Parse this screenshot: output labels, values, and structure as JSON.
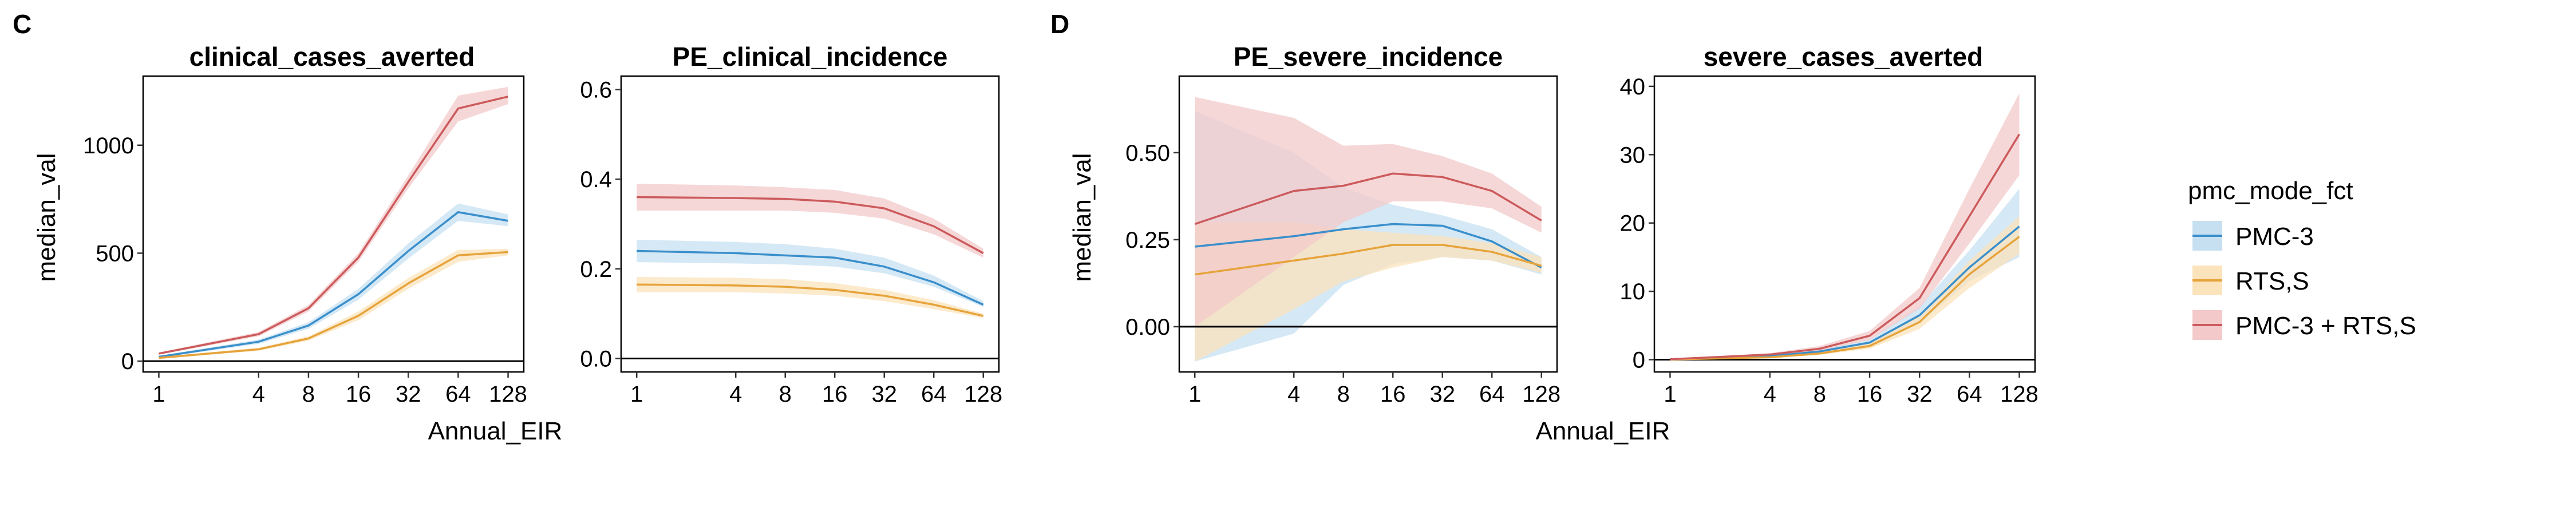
{
  "panel_labels": [
    "C",
    "D"
  ],
  "legend": {
    "title": "pmc_mode_fct",
    "items": [
      {
        "label": "PMC-3",
        "line_color": "#3A8FCB",
        "fill_color": "#C7E0F1"
      },
      {
        "label": "RTS,S",
        "line_color": "#E6A33A",
        "fill_color": "#FBE3BB"
      },
      {
        "label": "PMC-3 + RTS,S",
        "line_color": "#CC5A5C",
        "fill_color": "#F3C9CA"
      }
    ]
  },
  "axis_titles": {
    "x_left": "Annual_EIR",
    "x_right": "Annual_EIR",
    "y_left": "median_val",
    "y_right": "median_val"
  },
  "chart_data": [
    {
      "type": "area",
      "title": "clinical_cases_averted",
      "x": [
        1,
        4,
        8,
        16,
        32,
        64,
        128
      ],
      "x_scale": "log2",
      "x_ticks": [
        "1",
        "4",
        "8",
        "16",
        "32",
        "64",
        "128"
      ],
      "y_ticks": [
        0,
        500,
        1000
      ],
      "y_tick_labels": [
        "0",
        "500",
        "1000"
      ],
      "ylim": [
        -50,
        1320
      ],
      "hline": 0,
      "series": [
        {
          "name": "PMC-3",
          "values": [
            20,
            90,
            165,
            310,
            510,
            690,
            650
          ],
          "lower": [
            15,
            80,
            150,
            285,
            475,
            650,
            625
          ],
          "upper": [
            25,
            100,
            180,
            335,
            545,
            730,
            680
          ]
        },
        {
          "name": "RTS,S",
          "values": [
            15,
            55,
            105,
            210,
            360,
            490,
            505
          ],
          "lower": [
            10,
            48,
            95,
            190,
            335,
            460,
            490
          ],
          "upper": [
            20,
            62,
            115,
            230,
            385,
            515,
            520
          ]
        },
        {
          "name": "PMC-3 + RTS,S",
          "values": [
            35,
            125,
            245,
            480,
            830,
            1170,
            1225
          ],
          "lower": [
            30,
            115,
            230,
            460,
            800,
            1110,
            1190
          ],
          "upper": [
            40,
            135,
            260,
            500,
            860,
            1230,
            1270
          ]
        }
      ]
    },
    {
      "type": "area",
      "title": "PE_clinical_incidence",
      "x": [
        1,
        4,
        8,
        16,
        32,
        64,
        128
      ],
      "x_scale": "log2",
      "x_ticks": [
        "1",
        "4",
        "8",
        "16",
        "32",
        "64",
        "128"
      ],
      "y_ticks": [
        0.0,
        0.2,
        0.4,
        0.6
      ],
      "y_tick_labels": [
        "0.0",
        "0.2",
        "0.4",
        "0.6"
      ],
      "ylim": [
        -0.03,
        0.63
      ],
      "hline": 0,
      "series": [
        {
          "name": "PMC-3",
          "values": [
            0.24,
            0.235,
            0.23,
            0.225,
            0.205,
            0.17,
            0.12
          ],
          "lower": [
            0.215,
            0.212,
            0.21,
            0.205,
            0.19,
            0.16,
            0.115
          ],
          "upper": [
            0.265,
            0.26,
            0.255,
            0.245,
            0.225,
            0.185,
            0.128
          ]
        },
        {
          "name": "RTS,S",
          "values": [
            0.165,
            0.163,
            0.16,
            0.153,
            0.14,
            0.12,
            0.095
          ],
          "lower": [
            0.148,
            0.148,
            0.145,
            0.14,
            0.128,
            0.11,
            0.09
          ],
          "upper": [
            0.182,
            0.18,
            0.177,
            0.168,
            0.153,
            0.13,
            0.1
          ]
        },
        {
          "name": "PMC-3 + RTS,S",
          "values": [
            0.36,
            0.358,
            0.356,
            0.35,
            0.335,
            0.295,
            0.235
          ],
          "lower": [
            0.33,
            0.33,
            0.33,
            0.325,
            0.312,
            0.277,
            0.225
          ],
          "upper": [
            0.39,
            0.386,
            0.382,
            0.376,
            0.357,
            0.312,
            0.245
          ]
        }
      ]
    },
    {
      "type": "area",
      "title": "PE_severe_incidence",
      "x": [
        1,
        4,
        8,
        16,
        32,
        64,
        128
      ],
      "x_scale": "log2",
      "x_ticks": [
        "1",
        "4",
        "8",
        "16",
        "32",
        "64",
        "128"
      ],
      "y_ticks": [
        0.0,
        0.25,
        0.5
      ],
      "y_tick_labels": [
        "0.00",
        "0.25",
        "0.50"
      ],
      "ylim": [
        -0.13,
        0.72
      ],
      "hline": 0,
      "series": [
        {
          "name": "PMC-3",
          "values": [
            0.23,
            0.26,
            0.28,
            0.295,
            0.29,
            0.245,
            0.17
          ],
          "lower": [
            -0.1,
            -0.02,
            0.12,
            0.18,
            0.2,
            0.19,
            0.15
          ],
          "upper": [
            0.62,
            0.5,
            0.4,
            0.35,
            0.32,
            0.28,
            0.2
          ]
        },
        {
          "name": "RTS,S",
          "values": [
            0.15,
            0.19,
            0.21,
            0.235,
            0.235,
            0.215,
            0.175
          ],
          "lower": [
            -0.1,
            0.05,
            0.13,
            0.17,
            0.2,
            0.19,
            0.155
          ],
          "upper": [
            0.3,
            0.3,
            0.28,
            0.27,
            0.26,
            0.24,
            0.2
          ]
        },
        {
          "name": "PMC-3 + RTS,S",
          "values": [
            0.295,
            0.39,
            0.405,
            0.44,
            0.43,
            0.39,
            0.305
          ],
          "lower": [
            0.0,
            0.2,
            0.3,
            0.36,
            0.36,
            0.34,
            0.27
          ],
          "upper": [
            0.66,
            0.6,
            0.52,
            0.525,
            0.49,
            0.44,
            0.345
          ]
        }
      ]
    },
    {
      "type": "area",
      "title": "severe_cases_averted",
      "x": [
        1,
        4,
        8,
        16,
        32,
        64,
        128
      ],
      "x_scale": "log2",
      "x_ticks": [
        "1",
        "4",
        "8",
        "16",
        "32",
        "64",
        "128"
      ],
      "y_ticks": [
        0,
        10,
        20,
        30,
        40
      ],
      "y_tick_labels": [
        "0",
        "10",
        "20",
        "30",
        "40"
      ],
      "ylim": [
        -1.8,
        41.5
      ],
      "hline": 0,
      "series": [
        {
          "name": "PMC-3",
          "values": [
            0.05,
            0.5,
            1.2,
            2.5,
            6.5,
            13.5,
            19.5
          ],
          "lower": [
            0.02,
            0.35,
            0.9,
            2.0,
            5.3,
            11.5,
            15.0
          ],
          "upper": [
            0.08,
            0.65,
            1.5,
            3.0,
            7.8,
            16.0,
            25.0
          ]
        },
        {
          "name": "RTS,S",
          "values": [
            0.03,
            0.35,
            0.9,
            2.0,
            5.5,
            12.5,
            18.0
          ],
          "lower": [
            0.01,
            0.25,
            0.7,
            1.6,
            4.5,
            10.5,
            15.5
          ],
          "upper": [
            0.05,
            0.45,
            1.1,
            2.4,
            6.5,
            14.5,
            21.0
          ]
        },
        {
          "name": "PMC-3 + RTS,S",
          "values": [
            0.06,
            0.75,
            1.6,
            3.5,
            9.0,
            21.0,
            33.0
          ],
          "lower": [
            0.03,
            0.55,
            1.3,
            2.9,
            7.5,
            17.0,
            27.0
          ],
          "upper": [
            0.09,
            0.95,
            2.0,
            4.2,
            10.5,
            25.0,
            39.0
          ]
        }
      ]
    }
  ]
}
